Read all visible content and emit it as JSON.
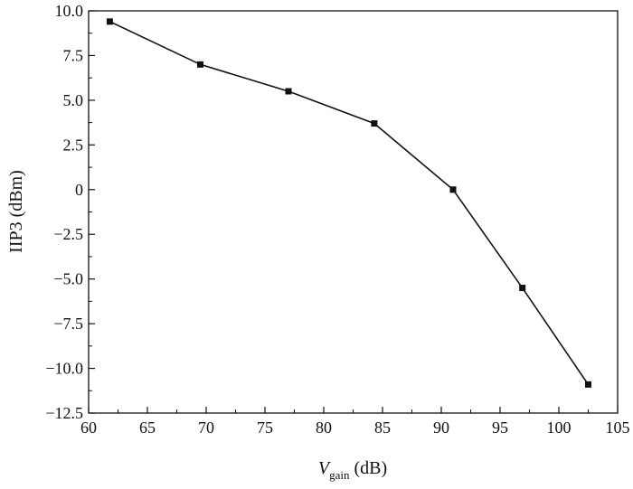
{
  "chart_data": {
    "type": "line",
    "title": "",
    "xlabel": {
      "main": "V",
      "subscript": "gain",
      "unit": " (dB)"
    },
    "ylabel": "IIP3 (dBm)",
    "xlim": [
      60,
      105
    ],
    "ylim": [
      -12.5,
      10.0
    ],
    "xticks": [
      60,
      65,
      70,
      75,
      80,
      85,
      90,
      95,
      100,
      105
    ],
    "xtick_labels": [
      "60",
      "65",
      "70",
      "75",
      "80",
      "85",
      "90",
      "95",
      "100",
      "105"
    ],
    "yticks": [
      10.0,
      7.5,
      5.0,
      2.5,
      0,
      -2.5,
      -5.0,
      -7.5,
      -10.0,
      -12.5
    ],
    "ytick_labels": [
      "10.0",
      "7.5",
      "5.0",
      "2.5",
      "0",
      "−2.5",
      "−5.0",
      "−7.5",
      "−10.0",
      "−12.5"
    ],
    "grid": false,
    "series": [
      {
        "x": [
          61.8,
          69.5,
          77.0,
          84.3,
          91.0,
          96.9,
          102.5
        ],
        "y": [
          9.4,
          7.0,
          5.5,
          3.7,
          0.0,
          -5.5,
          -10.9
        ],
        "marker": "square",
        "color": "#111111"
      }
    ]
  }
}
